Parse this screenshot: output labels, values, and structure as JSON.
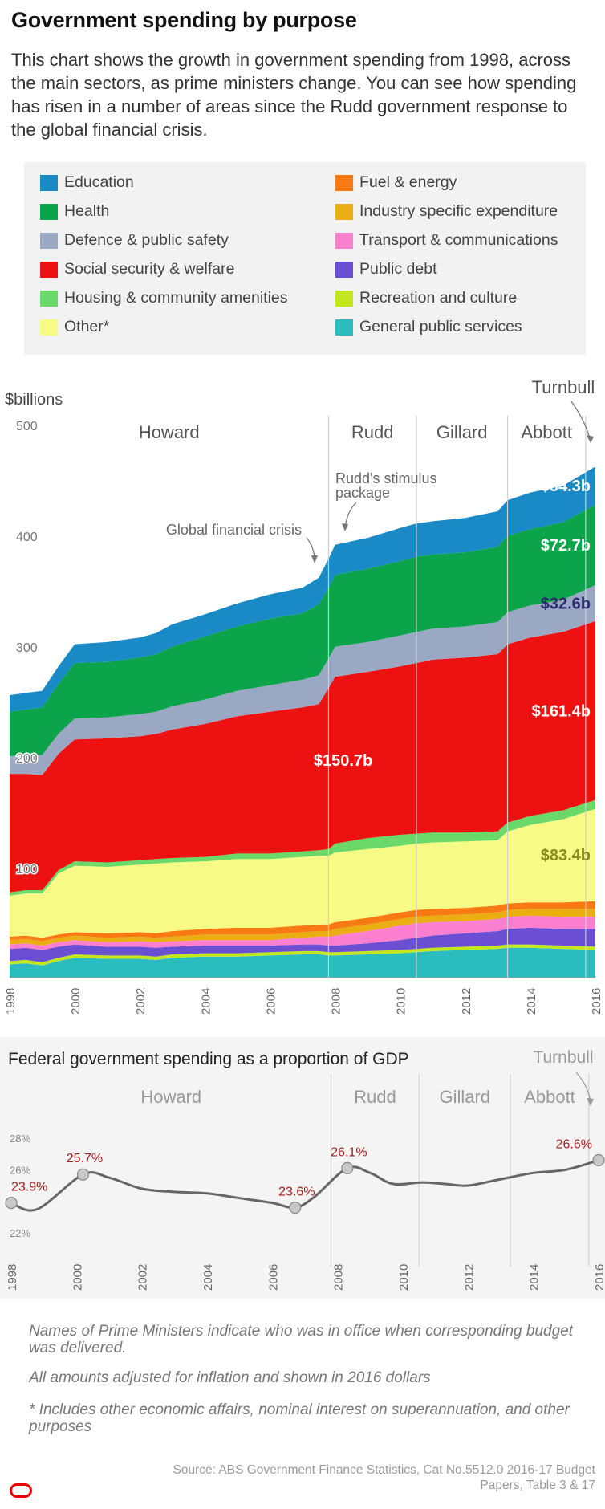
{
  "title": "Government spending by purpose",
  "intro": "This chart shows the growth in government spending from 1998, across the main sectors, as prime ministers change. You can see how spending has risen in a number of areas since the Rudd government response to the global financial crisis.",
  "legend": [
    {
      "label": "Education",
      "color": "#1a8ac6"
    },
    {
      "label": "Health",
      "color": "#0ba44a"
    },
    {
      "label": "Defence & public safety",
      "color": "#9aa8c4"
    },
    {
      "label": "Social security & welfare",
      "color": "#ee1111"
    },
    {
      "label": "Housing & community amenities",
      "color": "#6ad96a"
    },
    {
      "label": "Other*",
      "color": "#f7fb86"
    },
    {
      "label": "Fuel & energy",
      "color": "#f97a12"
    },
    {
      "label": "Industry specific expenditure",
      "color": "#eaae12"
    },
    {
      "label": "Transport & communications",
      "color": "#fb7fcf"
    },
    {
      "label": "Public debt",
      "color": "#6a4fd2"
    },
    {
      "label": "Recreation and culture",
      "color": "#c4e61e"
    },
    {
      "label": "General public services",
      "color": "#2bbcbe"
    }
  ],
  "chart_data": [
    {
      "type": "area",
      "ylabel": "$billions",
      "ylim": [
        0,
        500
      ],
      "yticks": [
        100,
        200,
        300,
        400,
        500
      ],
      "xlim": [
        1998,
        2016
      ],
      "xticks": [
        1998,
        2000,
        2002,
        2004,
        2006,
        2008,
        2010,
        2012,
        2014,
        2016
      ],
      "x": [
        1998,
        1998.5,
        1999,
        1999.5,
        2000,
        2001,
        2002,
        2002.5,
        2003,
        2004,
        2005,
        2006,
        2007,
        2007.5,
        2007.8,
        2008,
        2009,
        2010,
        2010.5,
        2011,
        2012,
        2013,
        2013.3,
        2014,
        2015,
        2016
      ],
      "series": [
        {
          "name": "General public services",
          "values": [
            12,
            13,
            11,
            15,
            18,
            17,
            17,
            16,
            18,
            19,
            19,
            20,
            21,
            21,
            20,
            20,
            21,
            22,
            23,
            24,
            25,
            26,
            27,
            27,
            26,
            25
          ]
        },
        {
          "name": "Recreation and culture",
          "values": [
            3,
            3,
            3,
            3,
            3,
            3,
            3,
            3,
            3,
            3,
            3,
            3,
            3,
            3,
            3,
            3,
            3,
            3,
            3,
            3,
            3,
            3,
            3,
            3,
            3,
            3
          ]
        },
        {
          "name": "Public debt",
          "values": [
            11,
            11,
            11,
            10,
            9,
            8,
            8,
            8,
            7,
            7,
            7,
            6,
            6,
            6,
            6,
            6,
            7,
            9,
            10,
            11,
            12,
            13,
            14,
            15,
            15,
            16
          ]
        },
        {
          "name": "Transport & communications",
          "values": [
            4,
            4,
            4,
            4,
            4,
            4,
            5,
            5,
            5,
            5,
            5,
            5,
            6,
            7,
            8,
            9,
            11,
            13,
            13,
            12,
            11,
            11,
            11,
            11,
            11,
            11
          ]
        },
        {
          "name": "Industry specific expenditure",
          "values": [
            4,
            4,
            4,
            4,
            4,
            4,
            4,
            4,
            4,
            5,
            5,
            5,
            5,
            5,
            5,
            6,
            6,
            6,
            6,
            6,
            6,
            6,
            6,
            6,
            7,
            7
          ]
        },
        {
          "name": "Fuel & energy",
          "values": [
            3,
            3,
            3,
            3,
            3,
            4,
            4,
            4,
            5,
            5,
            6,
            6,
            6,
            6,
            6,
            6,
            6,
            6,
            6,
            6,
            6,
            6,
            6,
            6,
            6,
            7
          ]
        },
        {
          "name": "Other*",
          "values": [
            37,
            38,
            40,
            55,
            60,
            60,
            61,
            63,
            62,
            61,
            62,
            62,
            62,
            62,
            62,
            63,
            62,
            60,
            60,
            60,
            60,
            59,
            65,
            70,
            75,
            83.4
          ]
        },
        {
          "name": "Housing & community amenities",
          "values": [
            3,
            3,
            3,
            3,
            4,
            4,
            4,
            4,
            4,
            4,
            5,
            5,
            5,
            5,
            6,
            8,
            10,
            10,
            9,
            9,
            8,
            8,
            8,
            8,
            8,
            8
          ]
        },
        {
          "name": "Social security & welfare",
          "values": [
            107,
            105,
            104,
            105,
            110,
            112,
            112,
            113,
            116,
            120,
            124,
            128,
            130,
            132,
            145,
            150.7,
            150,
            152,
            154,
            156,
            158,
            160,
            161,
            161,
            161,
            161.4
          ]
        },
        {
          "name": "Defence & public safety",
          "values": [
            16,
            17,
            18,
            18,
            19,
            19,
            20,
            20,
            21,
            22,
            23,
            24,
            25,
            26,
            27,
            27,
            27,
            28,
            28,
            28,
            28,
            29,
            29,
            29,
            29,
            32.6
          ]
        },
        {
          "name": "Health",
          "values": [
            40,
            41,
            43,
            45,
            50,
            50,
            51,
            52,
            54,
            57,
            58,
            60,
            60,
            64,
            64,
            65,
            66,
            67,
            68,
            67,
            67,
            68,
            69,
            69,
            70,
            72.7
          ]
        },
        {
          "name": "Education",
          "values": [
            15,
            15,
            15,
            16,
            17,
            18,
            18,
            19,
            20,
            20,
            21,
            22,
            23,
            24,
            26,
            27,
            28,
            30,
            30,
            30,
            31,
            32,
            32,
            33,
            33,
            34.3
          ]
        }
      ],
      "value_labels": [
        {
          "text": "$34.3b",
          "series": "Education",
          "x": 2016
        },
        {
          "text": "$72.7b",
          "series": "Health",
          "x": 2016
        },
        {
          "text": "$32.6b",
          "series": "Defence & public safety",
          "x": 2016
        },
        {
          "text": "$161.4b",
          "series": "Social security & welfare",
          "x": 2016
        },
        {
          "text": "$83.4b",
          "series": "Other*",
          "x": 2016
        },
        {
          "text": "$150.7b",
          "series": "Social security & welfare",
          "x": 2008
        }
      ],
      "prime_ministers": [
        {
          "name": "Howard",
          "start": 1998,
          "end": 2007.8
        },
        {
          "name": "Rudd",
          "start": 2007.8,
          "end": 2010.5
        },
        {
          "name": "Gillard",
          "start": 2010.5,
          "end": 2013.3
        },
        {
          "name": "Abbott",
          "start": 2013.3,
          "end": 2015.7
        },
        {
          "name": "Turnbull",
          "start": 2015.7,
          "end": 2016
        }
      ],
      "annotations": [
        {
          "text": "Global financial crisis",
          "x": 2007.5
        },
        {
          "text": "Rudd's stimulus package",
          "x": 2008.5
        }
      ]
    },
    {
      "type": "line",
      "title": "Federal government spending as a proportion of GDP",
      "ylim": [
        22,
        28
      ],
      "yticks": [
        "22%",
        "26%",
        "28%"
      ],
      "ytick_values": [
        22,
        26,
        28
      ],
      "xlim": [
        1998,
        2016
      ],
      "xticks": [
        1998,
        2000,
        2002,
        2004,
        2006,
        2008,
        2010,
        2012,
        2014,
        2016
      ],
      "x": [
        1998,
        1998.8,
        2000.2,
        2001,
        2002,
        2003,
        2004,
        2005,
        2006,
        2006.7,
        2007.3,
        2008.3,
        2009,
        2009.7,
        2010.6,
        2011.3,
        2012,
        2013,
        2014,
        2015,
        2016
      ],
      "values": [
        23.9,
        23.5,
        25.7,
        25.5,
        24.8,
        24.6,
        24.5,
        24.2,
        23.9,
        23.6,
        24.3,
        26.1,
        25.8,
        25.1,
        25.2,
        25.1,
        25.0,
        25.4,
        25.8,
        26.0,
        26.6
      ],
      "point_labels": [
        {
          "text": "23.9%",
          "x": 1998,
          "y": 23.9
        },
        {
          "text": "25.7%",
          "x": 2000.2,
          "y": 25.7
        },
        {
          "text": "23.6%",
          "x": 2006.7,
          "y": 23.6
        },
        {
          "text": "26.1%",
          "x": 2008.3,
          "y": 26.1
        },
        {
          "text": "26.6%",
          "x": 2016,
          "y": 26.6
        }
      ],
      "prime_ministers": [
        {
          "name": "Howard",
          "start": 1998,
          "end": 2007.8
        },
        {
          "name": "Rudd",
          "start": 2007.8,
          "end": 2010.5
        },
        {
          "name": "Gillard",
          "start": 2010.5,
          "end": 2013.3
        },
        {
          "name": "Abbott",
          "start": 2013.3,
          "end": 2015.7
        },
        {
          "name": "Turnbull",
          "start": 2015.7,
          "end": 2016
        }
      ]
    }
  ],
  "notes": [
    "Names of Prime Ministers indicate who was in office when corresponding budget was delivered.",
    "All amounts adjusted for inflation and shown in 2016 dollars",
    "* Includes other economic affairs, nominal interest on superannuation, and other purposes"
  ],
  "source": "Source: ABS Government Finance Statistics, Cat No.5512.0 2016-17 Budget Papers, Table 3 & 17"
}
